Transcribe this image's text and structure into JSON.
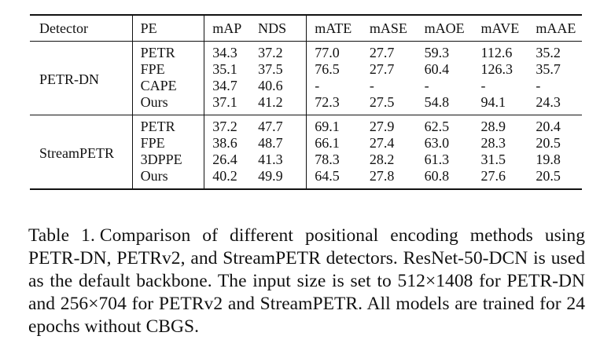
{
  "table": {
    "headers": [
      "Detector",
      "PE",
      "mAP",
      "NDS",
      "mATE",
      "mASE",
      "mAOE",
      "mAVE",
      "mAAE"
    ],
    "groups": [
      {
        "detector": "PETR-DN",
        "rows": [
          {
            "pe": "PETR",
            "map": "34.3",
            "nds": "37.2",
            "mate": "77.0",
            "mase": "27.7",
            "maoe": "59.3",
            "mave": "112.6",
            "maae": "35.2"
          },
          {
            "pe": "FPE",
            "map": "35.1",
            "nds": "37.5",
            "mate": "76.5",
            "mase": "27.7",
            "maoe": "60.4",
            "mave": "126.3",
            "maae": "35.7"
          },
          {
            "pe": "CAPE",
            "map": "34.7",
            "nds": "40.6",
            "mate": "-",
            "mase": "-",
            "maoe": "-",
            "mave": "-",
            "maae": "-"
          },
          {
            "pe": "Ours",
            "map": "37.1",
            "nds": "41.2",
            "mate": "72.3",
            "mase": "27.5",
            "maoe": "54.8",
            "mave": "94.1",
            "maae": "24.3"
          }
        ]
      },
      {
        "detector": "StreamPETR",
        "rows": [
          {
            "pe": "PETR",
            "map": "37.2",
            "nds": "47.7",
            "mate": "69.1",
            "mase": "27.9",
            "maoe": "62.5",
            "mave": "28.9",
            "maae": "20.4"
          },
          {
            "pe": "FPE",
            "map": "38.6",
            "nds": "48.7",
            "mate": "66.1",
            "mase": "27.4",
            "maoe": "63.0",
            "mave": "28.3",
            "maae": "20.5"
          },
          {
            "pe": "3DPPE",
            "map": "26.4",
            "nds": "41.3",
            "mate": "78.3",
            "mase": "28.2",
            "maoe": "61.3",
            "mave": "31.5",
            "maae": "19.8"
          },
          {
            "pe": "Ours",
            "map": "40.2",
            "nds": "49.9",
            "mate": "64.5",
            "mase": "27.8",
            "maoe": "60.8",
            "mave": "27.6",
            "maae": "20.5"
          }
        ]
      }
    ]
  },
  "caption": {
    "label": "Table 1.",
    "text": "Comparison of different positional encoding methods using PETR-DN, PETRv2, and StreamPETR detectors. ResNet-50-DCN is used as the default backbone. The input size is set to 512×1408 for PETR-DN and 256×704 for PETRv2 and StreamPETR. All models are trained for 24 epochs without CBGS."
  }
}
